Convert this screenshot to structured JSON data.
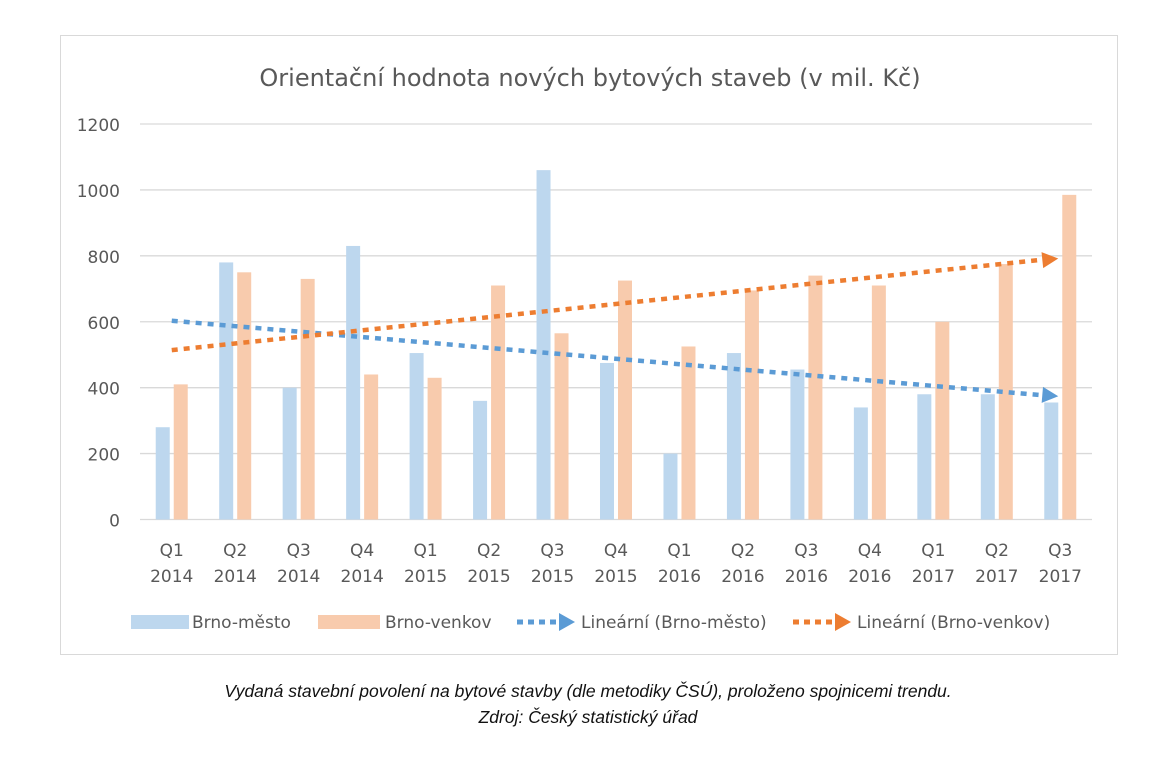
{
  "chart_data": {
    "type": "bar",
    "title": "Orientační hodnota nových bytových staveb (v mil. Kč)",
    "xlabel": "",
    "ylabel": "",
    "ylim": [
      0,
      1200
    ],
    "yticks": [
      0,
      200,
      400,
      600,
      800,
      1000,
      1200
    ],
    "ytick_labels": [
      "0",
      "200",
      "400",
      "600",
      "800",
      "1000",
      "1200"
    ],
    "grid": true,
    "legend_position": "bottom",
    "categories": [
      [
        "Q1",
        "2014"
      ],
      [
        "Q2",
        "2014"
      ],
      [
        "Q3",
        "2014"
      ],
      [
        "Q4",
        "2014"
      ],
      [
        "Q1",
        "2015"
      ],
      [
        "Q2",
        "2015"
      ],
      [
        "Q3",
        "2015"
      ],
      [
        "Q4",
        "2015"
      ],
      [
        "Q1",
        "2016"
      ],
      [
        "Q2",
        "2016"
      ],
      [
        "Q3",
        "2016"
      ],
      [
        "Q4",
        "2016"
      ],
      [
        "Q1",
        "2017"
      ],
      [
        "Q2",
        "2017"
      ],
      [
        "Q3",
        "2017"
      ]
    ],
    "series": [
      {
        "name": "Brno-město",
        "color": "#bdd7ee",
        "values": [
          280,
          780,
          400,
          830,
          505,
          360,
          1060,
          475,
          200,
          505,
          455,
          340,
          380,
          380,
          355
        ]
      },
      {
        "name": "Brno-venkov",
        "color": "#f8cbad",
        "values": [
          410,
          750,
          730,
          440,
          430,
          710,
          565,
          725,
          525,
          695,
          740,
          710,
          600,
          775,
          985
        ]
      }
    ],
    "trendlines": [
      {
        "name": "Lineární (Brno-město)",
        "color": "#5b9bd5",
        "start": 603,
        "end": 374
      },
      {
        "name": "Lineární (Brno-venkov)",
        "color": "#ed7d31",
        "start": 514,
        "end": 792
      }
    ]
  },
  "captions": {
    "line1": "Vydaná stavební povolení na bytové stavby (dle metodiky ČSÚ), proloženo spojnicemi trendu.",
    "line2": "Zdroj: Český statistický úřad"
  }
}
